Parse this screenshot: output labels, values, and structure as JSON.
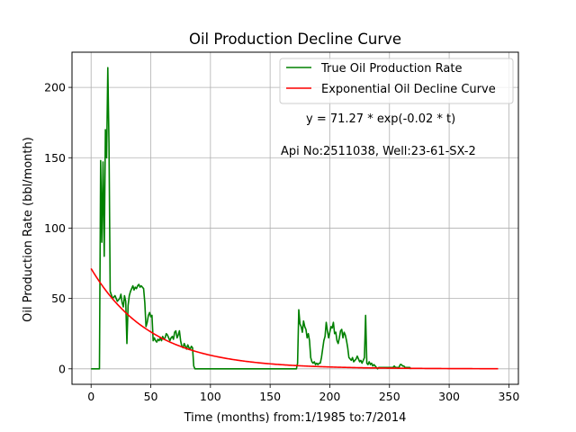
{
  "chart_data": {
    "type": "line",
    "title": "Oil Production Decline Curve",
    "xlabel": "Time (months) from:1/1985 to:7/2014",
    "ylabel": "Oil Production Rate (bbl/month)",
    "xlim": [
      -16,
      358
    ],
    "ylim": [
      -11,
      225
    ],
    "x_ticks": [
      0,
      50,
      100,
      150,
      200,
      250,
      300,
      350
    ],
    "y_ticks": [
      0,
      50,
      100,
      150,
      200
    ],
    "grid": true,
    "legend_position": "top-right",
    "annotations": [
      "y = 71.27 * exp(-0.02 * t)",
      "Api No:2511038, Well:23-61-SX-2"
    ],
    "series": [
      {
        "name": "True Oil Production Rate",
        "color": "#008000",
        "x": [
          0,
          3,
          6,
          7,
          8,
          9,
          10,
          11,
          12,
          13,
          14,
          15,
          16,
          18,
          20,
          22,
          24,
          25,
          26,
          27,
          28,
          29,
          30,
          31,
          32,
          33,
          34,
          35,
          36,
          37,
          38,
          39,
          40,
          41,
          42,
          43,
          44,
          45,
          46,
          47,
          48,
          49,
          50,
          51,
          52,
          53,
          54,
          55,
          56,
          57,
          58,
          59,
          60,
          61,
          62,
          63,
          64,
          65,
          66,
          67,
          68,
          69,
          70,
          71,
          72,
          73,
          74,
          75,
          76,
          77,
          78,
          79,
          80,
          81,
          82,
          83,
          84,
          85,
          86,
          87,
          88,
          89,
          90,
          91,
          92,
          93,
          95,
          100,
          120,
          140,
          160,
          170,
          172,
          173,
          174,
          175,
          176,
          177,
          178,
          179,
          180,
          181,
          182,
          183,
          184,
          185,
          186,
          187,
          188,
          189,
          190,
          191,
          192,
          193,
          194,
          195,
          196,
          197,
          198,
          199,
          200,
          201,
          202,
          203,
          204,
          205,
          206,
          207,
          208,
          209,
          210,
          211,
          212,
          213,
          214,
          215,
          216,
          217,
          218,
          219,
          220,
          221,
          222,
          223,
          224,
          225,
          226,
          227,
          228,
          229,
          230,
          231,
          232,
          233,
          234,
          235,
          236,
          237,
          238,
          239,
          240,
          241,
          242,
          243,
          244,
          245,
          246,
          247,
          248,
          249,
          250,
          251,
          252,
          253,
          254,
          255,
          256,
          257,
          258,
          259,
          260,
          261,
          262,
          263,
          264,
          265,
          266,
          267,
          268
        ],
        "y": [
          0,
          0,
          0,
          0,
          148,
          90,
          147,
          80,
          170,
          150,
          214,
          160,
          55,
          50,
          52,
          48,
          50,
          53,
          47,
          44,
          52,
          48,
          18,
          45,
          52,
          55,
          57,
          59,
          56,
          58,
          57,
          59,
          60,
          58,
          59,
          58,
          57,
          47,
          30,
          33,
          38,
          40,
          37,
          38,
          20,
          22,
          20,
          19,
          21,
          20,
          22,
          20,
          23,
          21,
          22,
          25,
          24,
          22,
          20,
          22,
          23,
          21,
          26,
          27,
          22,
          24,
          27,
          20,
          16,
          15,
          18,
          16,
          14,
          17,
          15,
          14,
          16,
          15,
          2,
          0,
          0,
          0,
          0,
          0,
          0,
          0,
          0,
          0,
          0,
          0,
          0,
          0,
          0,
          4,
          42,
          32,
          30,
          26,
          34,
          30,
          28,
          22,
          25,
          20,
          8,
          5,
          4,
          5,
          3,
          4,
          3,
          4,
          4,
          8,
          14,
          20,
          23,
          33,
          27,
          22,
          26,
          30,
          29,
          33,
          25,
          26,
          20,
          18,
          22,
          27,
          28,
          22,
          26,
          24,
          20,
          15,
          8,
          7,
          6,
          8,
          5,
          6,
          7,
          9,
          7,
          5,
          6,
          4,
          6,
          8,
          38,
          4,
          3,
          5,
          3,
          4,
          2,
          3,
          2,
          1,
          0,
          1,
          1,
          1,
          1,
          1,
          1,
          1,
          1,
          1,
          1,
          1,
          1,
          1,
          2,
          1,
          1,
          1,
          1,
          3,
          3,
          2,
          2,
          1,
          1,
          1,
          1,
          1,
          0
        ]
      },
      {
        "name": "Exponential Oil Decline Curve",
        "color": "#ff0000",
        "function": "71.27 * exp(-0.02 * t)",
        "a": 71.27,
        "b": 0.02,
        "x_range": [
          0,
          341
        ]
      }
    ]
  }
}
